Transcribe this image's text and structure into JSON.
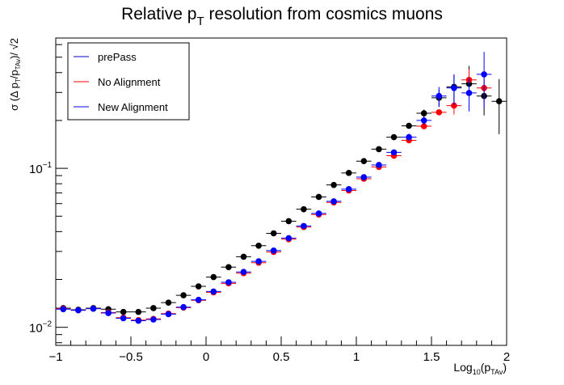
{
  "chart_data": {
    "type": "scatter",
    "title": "Relative p_T resolution from cosmics muons",
    "title_parts": {
      "main": "Relative p",
      "sub": "T",
      "rest": " resolution from cosmics muons"
    },
    "xlabel": "Log10(pTAv)",
    "xlabel_parts": {
      "a": "Log",
      "a_sub": "10",
      "b": "(p",
      "b_sub": "TAv",
      "c": ")"
    },
    "ylabel": "σ (Δ pT/pTAv)/ √2",
    "ylabel_parts": {
      "a": "σ (Δ p",
      "a_sub": "T",
      "b": "/p",
      "b_sub": "TAv",
      "c": ")/ √2"
    },
    "xlim": [
      -1,
      2
    ],
    "ylim": [
      0.0077,
      0.66
    ],
    "yscale": "log",
    "x_ticks": [
      -1,
      -0.5,
      0,
      0.5,
      1,
      1.5,
      2
    ],
    "x_tick_labels": [
      "−1",
      "−0.5",
      "0",
      "0.5",
      "1",
      "1.5",
      "2"
    ],
    "y_tick_labels": [
      {
        "value": 0.1,
        "base": "10",
        "exp": "−1"
      },
      {
        "value": 0.01,
        "base": "10",
        "exp": "−2"
      }
    ],
    "grid": false,
    "legend_position": "top-left",
    "series": [
      {
        "name": "prePass",
        "color": "#000000",
        "legend_color": "#0000cc",
        "points": [
          {
            "x": -0.95,
            "y": 0.0132
          },
          {
            "x": -0.85,
            "y": 0.0129
          },
          {
            "x": -0.75,
            "y": 0.0132
          },
          {
            "x": -0.65,
            "y": 0.013
          },
          {
            "x": -0.55,
            "y": 0.0125
          },
          {
            "x": -0.45,
            "y": 0.0125
          },
          {
            "x": -0.35,
            "y": 0.0132
          },
          {
            "x": -0.25,
            "y": 0.0143
          },
          {
            "x": -0.15,
            "y": 0.0159
          },
          {
            "x": -0.05,
            "y": 0.0181
          },
          {
            "x": 0.05,
            "y": 0.0207
          },
          {
            "x": 0.15,
            "y": 0.0239
          },
          {
            "x": 0.25,
            "y": 0.0278
          },
          {
            "x": 0.35,
            "y": 0.0326
          },
          {
            "x": 0.45,
            "y": 0.039
          },
          {
            "x": 0.55,
            "y": 0.0465
          },
          {
            "x": 0.65,
            "y": 0.0553
          },
          {
            "x": 0.75,
            "y": 0.0661
          },
          {
            "x": 0.85,
            "y": 0.0786
          },
          {
            "x": 0.95,
            "y": 0.0935
          },
          {
            "x": 1.05,
            "y": 0.111
          },
          {
            "x": 1.15,
            "y": 0.132
          },
          {
            "x": 1.25,
            "y": 0.157
          },
          {
            "x": 1.35,
            "y": 0.185
          },
          {
            "x": 1.45,
            "y": 0.222
          },
          {
            "x": 1.55,
            "y": 0.278
          },
          {
            "x": 1.65,
            "y": 0.325
          },
          {
            "x": 1.75,
            "y": 0.34
          },
          {
            "x": 1.85,
            "y": 0.285
          },
          {
            "x": 1.95,
            "y": 0.264
          }
        ],
        "y_err": [
          0,
          0,
          0,
          0,
          0,
          0,
          0,
          0,
          0,
          0,
          0,
          0,
          0,
          0,
          0,
          0,
          0,
          0,
          0,
          0,
          0,
          0,
          0,
          0,
          0.012,
          0.035,
          0.06,
          0.1,
          0.07,
          0.1
        ]
      },
      {
        "name": "No Alignment",
        "color": "#ff0000",
        "points": [
          {
            "x": -0.95,
            "y": 0.0131
          },
          {
            "x": -0.85,
            "y": 0.0128
          },
          {
            "x": -0.75,
            "y": 0.0131
          },
          {
            "x": -0.65,
            "y": 0.0124
          },
          {
            "x": -0.55,
            "y": 0.0115
          },
          {
            "x": -0.45,
            "y": 0.0111
          },
          {
            "x": -0.35,
            "y": 0.0113
          },
          {
            "x": -0.25,
            "y": 0.0122
          },
          {
            "x": -0.15,
            "y": 0.0133
          },
          {
            "x": -0.05,
            "y": 0.0148
          },
          {
            "x": 0.05,
            "y": 0.0166
          },
          {
            "x": 0.15,
            "y": 0.0189
          },
          {
            "x": 0.25,
            "y": 0.0219
          },
          {
            "x": 0.35,
            "y": 0.0255
          },
          {
            "x": 0.45,
            "y": 0.0298
          },
          {
            "x": 0.55,
            "y": 0.0358
          },
          {
            "x": 0.65,
            "y": 0.0427
          },
          {
            "x": 0.75,
            "y": 0.0512
          },
          {
            "x": 0.85,
            "y": 0.061
          },
          {
            "x": 0.95,
            "y": 0.0725
          },
          {
            "x": 1.05,
            "y": 0.086
          },
          {
            "x": 1.15,
            "y": 0.102
          },
          {
            "x": 1.25,
            "y": 0.12
          },
          {
            "x": 1.35,
            "y": 0.15
          },
          {
            "x": 1.45,
            "y": 0.184
          },
          {
            "x": 1.55,
            "y": 0.225
          },
          {
            "x": 1.65,
            "y": 0.248
          },
          {
            "x": 1.75,
            "y": 0.36
          },
          {
            "x": 1.85,
            "y": 0.32
          }
        ],
        "y_err": [
          0,
          0,
          0,
          0,
          0,
          0,
          0,
          0,
          0,
          0,
          0,
          0,
          0,
          0,
          0,
          0,
          0,
          0,
          0,
          0,
          0,
          0,
          0,
          0,
          0,
          0,
          0.03,
          0.06,
          0.06
        ]
      },
      {
        "name": "New Alignment",
        "color": "#0000ff",
        "points": [
          {
            "x": -0.95,
            "y": 0.013
          },
          {
            "x": -0.85,
            "y": 0.0128
          },
          {
            "x": -0.75,
            "y": 0.0131
          },
          {
            "x": -0.65,
            "y": 0.0123
          },
          {
            "x": -0.55,
            "y": 0.0114
          },
          {
            "x": -0.45,
            "y": 0.011
          },
          {
            "x": -0.35,
            "y": 0.0112
          },
          {
            "x": -0.25,
            "y": 0.0121
          },
          {
            "x": -0.15,
            "y": 0.0134
          },
          {
            "x": -0.05,
            "y": 0.0149
          },
          {
            "x": 0.05,
            "y": 0.0168
          },
          {
            "x": 0.15,
            "y": 0.0192
          },
          {
            "x": 0.25,
            "y": 0.0223
          },
          {
            "x": 0.35,
            "y": 0.026
          },
          {
            "x": 0.45,
            "y": 0.0304
          },
          {
            "x": 0.55,
            "y": 0.0364
          },
          {
            "x": 0.65,
            "y": 0.0434
          },
          {
            "x": 0.75,
            "y": 0.052
          },
          {
            "x": 0.85,
            "y": 0.062
          },
          {
            "x": 0.95,
            "y": 0.074
          },
          {
            "x": 1.05,
            "y": 0.088
          },
          {
            "x": 1.15,
            "y": 0.105
          },
          {
            "x": 1.25,
            "y": 0.126
          },
          {
            "x": 1.35,
            "y": 0.157
          },
          {
            "x": 1.45,
            "y": 0.2
          },
          {
            "x": 1.55,
            "y": 0.285
          },
          {
            "x": 1.65,
            "y": 0.32
          },
          {
            "x": 1.75,
            "y": 0.298
          },
          {
            "x": 1.85,
            "y": 0.39
          }
        ],
        "y_err": [
          0,
          0,
          0,
          0,
          0,
          0,
          0,
          0,
          0,
          0,
          0,
          0,
          0,
          0,
          0,
          0,
          0,
          0,
          0,
          0,
          0,
          0,
          0,
          0.008,
          0.012,
          0.04,
          0.07,
          0.07,
          0.15
        ]
      }
    ]
  }
}
